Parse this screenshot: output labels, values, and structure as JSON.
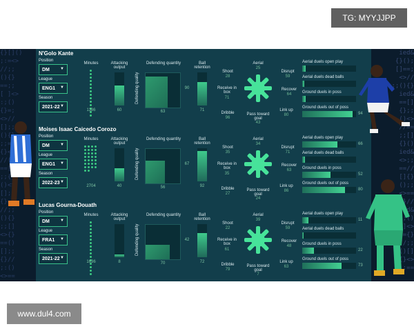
{
  "watermarks": {
    "telegram": "TG: MYYJJPP",
    "site": "www.dul4.com"
  },
  "labels": {
    "position": "Position",
    "league": "League",
    "season": "Season",
    "minutes": "Minutes",
    "attacking_output": "Attacking output",
    "defending_quantity": "Defending quantity",
    "defending_quality": "Defending quality",
    "ball_retention": "Ball retention",
    "shoot": "Shoot",
    "aerial": "Aerial",
    "disrupt": "Disrupt",
    "receive_in_box": "Receive in box",
    "recover": "Recover",
    "dribble": "Dribble",
    "pass_toward_goal": "Pass toward goal",
    "link_up": "Link up",
    "aerial_open": "Aerial duels open play",
    "aerial_dead": "Aerial duels dead balls",
    "ground_in": "Ground duels in poss",
    "ground_out": "Ground duels out of poss"
  },
  "colors": {
    "panel": "#123e4b",
    "accent": "#3fd98c",
    "star": "#47e39a"
  },
  "players": [
    {
      "name": "N'Golo Kante",
      "position": "DM",
      "league": "ENG1",
      "season": "2021-22",
      "minutes": "1186",
      "attacking_output": "60",
      "defending_quantity": "63",
      "defending_quality": "90",
      "ball_retention": "71",
      "shoot": "28",
      "aerial": "25",
      "disrupt": "59",
      "receive_in_box": "71",
      "recover": "64",
      "dribble": "96",
      "pass_toward_goal": "43",
      "link_up": "80",
      "aerial_open": "",
      "aerial_dead": "",
      "ground_in": "",
      "ground_out": "94",
      "fill": {
        "attacking": 0.6,
        "dq": 0.9,
        "dqt": 0.63,
        "retention": 0.71,
        "aerial_open": 0.06,
        "aerial_dead": 0.04,
        "ground_in": 0.06,
        "ground_out": 0.94
      },
      "minutes_dots": 14
    },
    {
      "name": "Moises Isaac Caicedo Corozo",
      "position": "DM",
      "league": "ENG1",
      "season": "2022-23",
      "minutes": "2704",
      "attacking_output": "40",
      "defending_quantity": "56",
      "defending_quality": "67",
      "ball_retention": "92",
      "shoot": "35",
      "aerial": "34",
      "disrupt": "71",
      "receive_in_box": "35",
      "recover": "63",
      "dribble": "27",
      "pass_toward_goal": "24",
      "link_up": "86",
      "aerial_open": "66",
      "aerial_dead": "",
      "ground_in": "52",
      "ground_out": "80",
      "fill": {
        "attacking": 0.4,
        "dq": 0.67,
        "dqt": 0.56,
        "retention": 0.92,
        "aerial_open": 0.66,
        "aerial_dead": 0.05,
        "ground_in": 0.52,
        "ground_out": 0.8
      },
      "minutes_dots": 30
    },
    {
      "name": "Lucas Gourna-Douath",
      "position": "DM",
      "league": "FRA1",
      "season": "2021-22",
      "minutes": "1636",
      "attacking_output": "8",
      "defending_quantity": "70",
      "defending_quality": "42",
      "ball_retention": "72",
      "shoot": "22",
      "aerial": "39",
      "disrupt": "59",
      "receive_in_box": "61",
      "recover": "48",
      "dribble": "79",
      "pass_toward_goal": "7",
      "link_up": "63",
      "aerial_open": "11",
      "aerial_dead": "",
      "ground_in": "22",
      "ground_out": "73",
      "fill": {
        "attacking": 0.08,
        "dq": 0.42,
        "dqt": 0.7,
        "retention": 0.72,
        "aerial_open": 0.11,
        "aerial_dead": 0.03,
        "ground_in": 0.22,
        "ground_out": 0.73
      },
      "minutes_dots": 16
    }
  ]
}
